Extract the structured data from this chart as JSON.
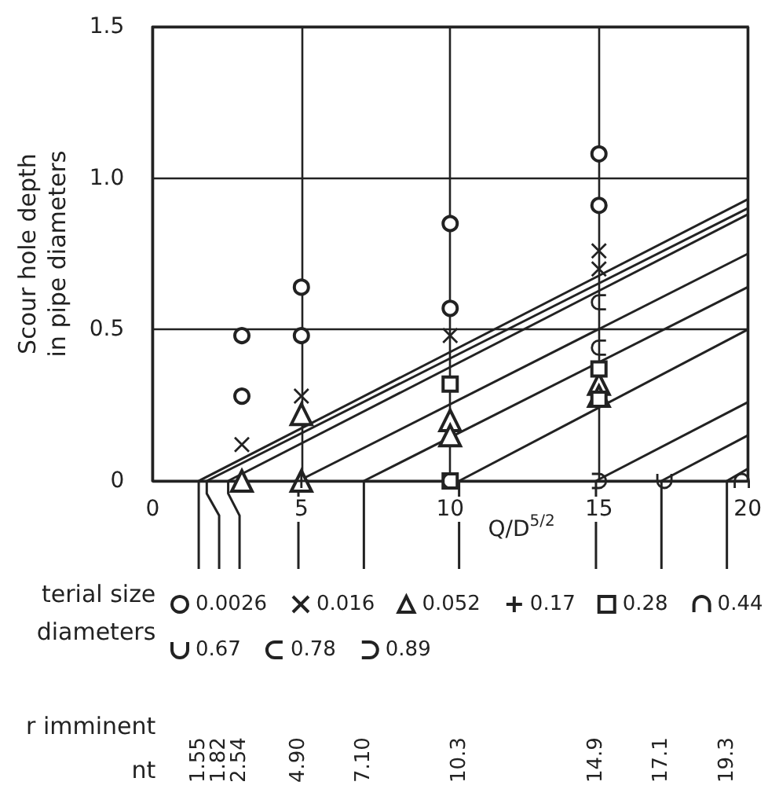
{
  "chart_data": {
    "type": "scatter",
    "xlabel": "Q/D$^{5/2}$",
    "ylabel": "Scour hole depth\nin pipe diameters",
    "xlim": [
      0,
      20
    ],
    "xticks": [
      0,
      5,
      10,
      15,
      20
    ],
    "ylim": [
      0,
      1.5
    ],
    "yticks": [
      0,
      0.5,
      {
        "value": 1,
        "label": "1.0"
      },
      1.5
    ],
    "grid": true,
    "legend": "bottom",
    "annotations": [
      "terial size",
      "diameters",
      "r imminent",
      "nt",
      "1.55",
      "1.82",
      "2.54",
      "4.90",
      "7.10",
      "10.3",
      "14.9",
      "17.1",
      "19.3"
    ],
    "series": [
      {
        "name": "0.0026",
        "color": "#222222",
        "x": [
          3,
          3,
          5,
          5,
          10,
          10,
          15,
          15
        ],
        "values": [
          0.48,
          0.28,
          0.64,
          0.48,
          0.85,
          0.57,
          1.08,
          0.91
        ]
      },
      {
        "name": "0.016",
        "color": "#222222",
        "x": [
          3,
          5,
          10,
          15,
          15
        ],
        "values": [
          0.12,
          0.28,
          0.48,
          0.76,
          0.7
        ]
      },
      {
        "name": "0.052",
        "color": "#222222",
        "x": [
          3,
          5,
          5,
          10,
          10,
          15,
          15
        ],
        "values": [
          0,
          0.22,
          0,
          0.2,
          0.15,
          0.32,
          0.28
        ]
      },
      {
        "name": "0.17",
        "color": "#222222",
        "x": [
          5
        ],
        "values": [
          0
        ]
      },
      {
        "name": "0.28",
        "color": "#222222",
        "x": [
          10,
          10,
          15,
          15
        ],
        "values": [
          0.32,
          0,
          0.37,
          0.27
        ]
      },
      {
        "name": "0.44",
        "color": "#222222",
        "x": [
          19.8
        ],
        "values": [
          0
        ]
      },
      {
        "name": "0.67",
        "color": "#222222",
        "x": [
          17.2
        ],
        "values": [
          0
        ]
      },
      {
        "name": "0.78",
        "color": "#222222",
        "x": [
          10,
          15,
          15
        ],
        "values": [
          0,
          0.59,
          0.44
        ]
      },
      {
        "name": "0.89",
        "color": "#222222",
        "x": [
          15
        ],
        "values": [
          0
        ]
      },
      {
        "type": "line",
        "color": "#222222",
        "x": [
          1.55,
          20
        ],
        "values": [
          0,
          0.93
        ]
      },
      {
        "type": "line",
        "color": "#222222",
        "x": [
          1.82,
          20
        ],
        "values": [
          0,
          0.9
        ]
      },
      {
        "type": "line",
        "color": "#222222",
        "x": [
          2.54,
          20
        ],
        "values": [
          0,
          0.88
        ]
      },
      {
        "type": "line",
        "color": "#222222",
        "x": [
          4.9,
          20
        ],
        "values": [
          0,
          0.75
        ]
      },
      {
        "type": "line",
        "color": "#222222",
        "x": [
          7.1,
          20
        ],
        "values": [
          0,
          0.64
        ]
      },
      {
        "type": "line",
        "color": "#222222",
        "x": [
          10.3,
          20
        ],
        "values": [
          0,
          0.5
        ]
      },
      {
        "type": "line",
        "color": "#222222",
        "x": [
          14.9,
          20
        ],
        "values": [
          0,
          0.26
        ]
      },
      {
        "type": "line",
        "color": "#222222",
        "x": [
          17.1,
          20
        ],
        "values": [
          0,
          0.15
        ]
      },
      {
        "type": "line",
        "color": "#222222",
        "x": [
          19.3,
          20
        ],
        "values": [
          0,
          0.04
        ]
      }
    ]
  }
}
